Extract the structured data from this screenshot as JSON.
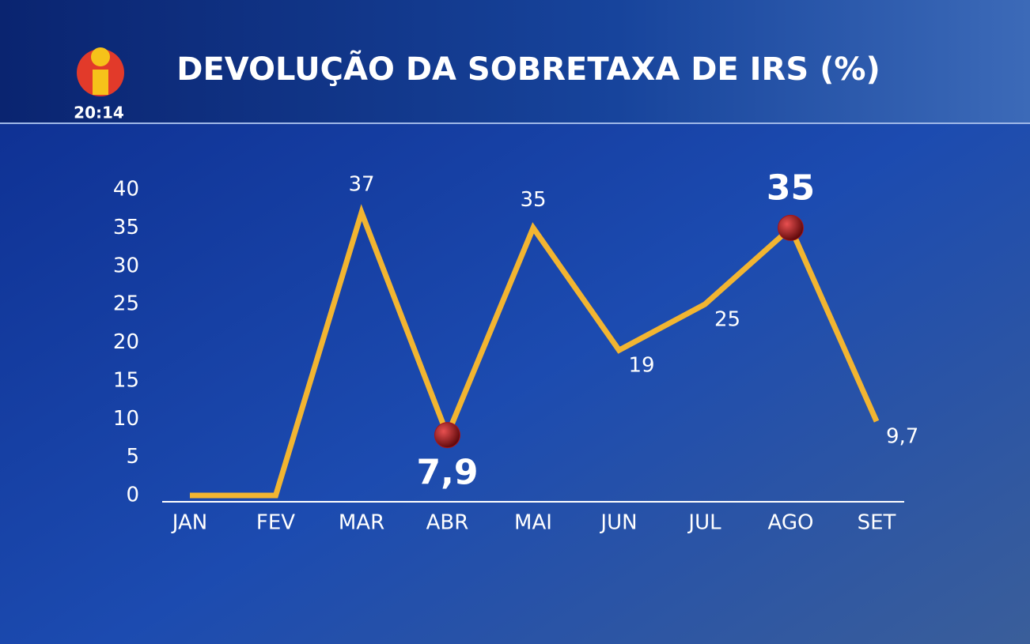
{
  "clock": "20:14",
  "chart_data": {
    "type": "line",
    "title": "DEVOLUÇÃO DA SOBRETAXA DE IRS (%)",
    "categories": [
      "JAN",
      "FEV",
      "MAR",
      "ABR",
      "MAI",
      "JUN",
      "JUL",
      "AGO",
      "SET"
    ],
    "series": [
      {
        "color": "#f2b531",
        "values": [
          0,
          0,
          37,
          7.9,
          35,
          19,
          25,
          35,
          9.7
        ],
        "value_labels": [
          null,
          null,
          "37",
          "7,9",
          "35",
          "19",
          "25",
          "35",
          "9,7"
        ]
      }
    ],
    "highlighted": [
      3,
      7
    ],
    "highlight_color": "#a8141a",
    "ylim": [
      0,
      40
    ],
    "yticks": [
      0,
      5,
      10,
      15,
      20,
      25,
      30,
      35,
      40
    ],
    "grid": false
  }
}
